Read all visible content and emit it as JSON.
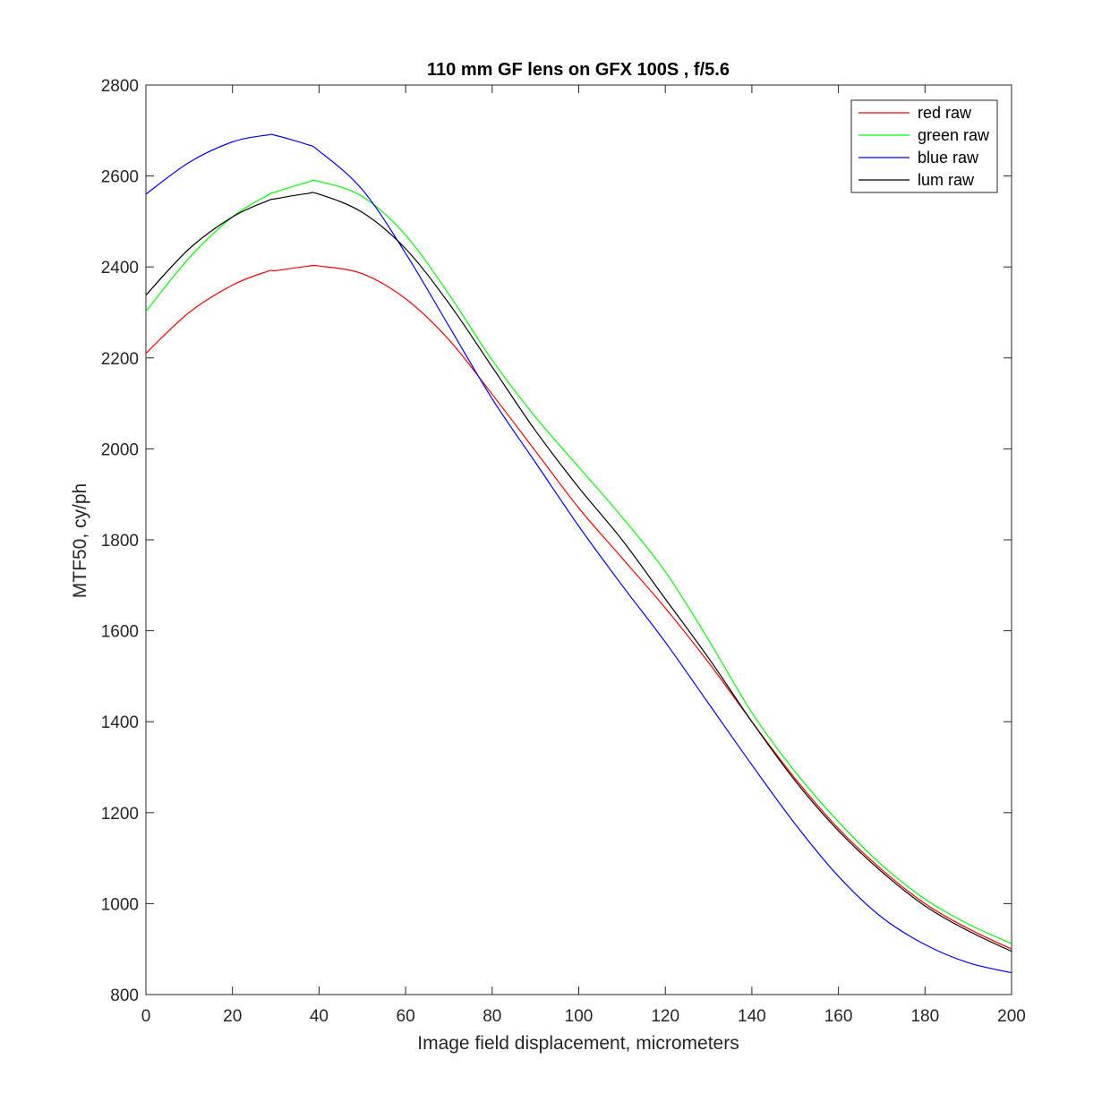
{
  "chart_data": {
    "type": "line",
    "title": "110 mm GF lens on GFX 100S , f/5.6",
    "xlabel": "Image field displacement, micrometers",
    "ylabel": "MTF50, cy/ph",
    "xlim": [
      0,
      200
    ],
    "ylim": [
      800,
      2800
    ],
    "xticks": [
      0,
      20,
      40,
      60,
      80,
      100,
      120,
      140,
      160,
      180,
      200
    ],
    "yticks": [
      800,
      1000,
      1200,
      1400,
      1600,
      1800,
      2000,
      2200,
      2400,
      2600,
      2800
    ],
    "grid": false,
    "legend_position": "top-right",
    "x": [
      0,
      10,
      20,
      28,
      30,
      37,
      40,
      50,
      60,
      70,
      80,
      90,
      100,
      110,
      120,
      130,
      140,
      150,
      160,
      170,
      180,
      190,
      200
    ],
    "series": [
      {
        "name": "red raw",
        "color": "#ff0000",
        "values": [
          2210,
          2300,
          2360,
          2390,
          2392,
          2401,
          2402,
          2385,
          2330,
          2240,
          2120,
          1995,
          1870,
          1760,
          1650,
          1530,
          1400,
          1275,
          1165,
          1075,
          1000,
          945,
          900
        ]
      },
      {
        "name": "green raw",
        "color": "#00ff00",
        "values": [
          2302,
          2420,
          2510,
          2557,
          2565,
          2585,
          2588,
          2555,
          2470,
          2340,
          2195,
          2070,
          1960,
          1850,
          1730,
          1580,
          1420,
          1290,
          1180,
          1085,
          1010,
          955,
          912
        ]
      },
      {
        "name": "blue raw",
        "color": "#0000ff",
        "values": [
          2560,
          2630,
          2675,
          2690,
          2689,
          2670,
          2655,
          2570,
          2430,
          2270,
          2110,
          1970,
          1830,
          1700,
          1575,
          1440,
          1305,
          1175,
          1060,
          970,
          910,
          870,
          848
        ]
      },
      {
        "name": "lum raw",
        "color": "#000000",
        "values": [
          2338,
          2440,
          2510,
          2545,
          2550,
          2561,
          2560,
          2520,
          2440,
          2320,
          2180,
          2040,
          1915,
          1800,
          1670,
          1540,
          1400,
          1270,
          1160,
          1070,
          995,
          940,
          895
        ]
      }
    ]
  }
}
